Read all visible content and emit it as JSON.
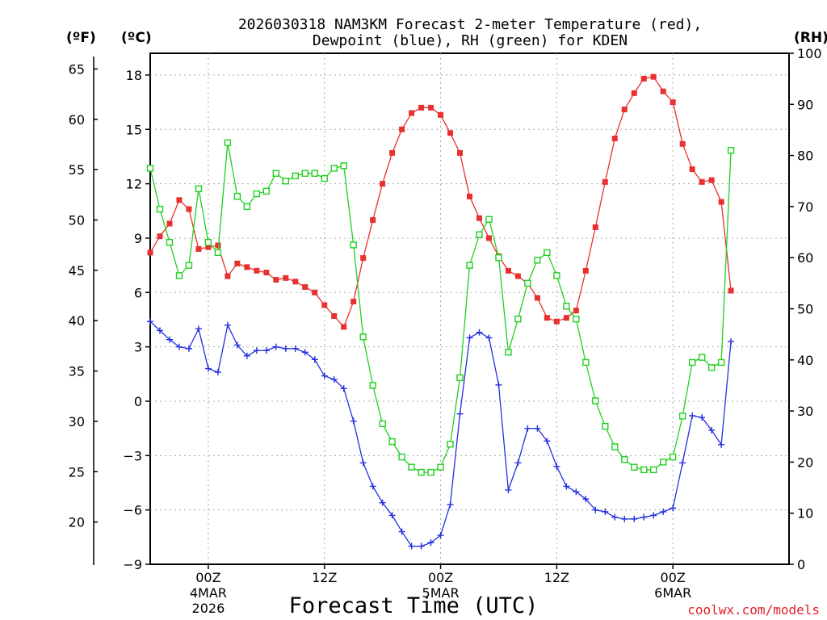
{
  "chart_data": {
    "type": "line",
    "title_line1": "2026030318 NAM3KM Forecast 2-meter Temperature (red),",
    "title_line2": "Dewpoint (blue), RH (green) for KDEN",
    "unit_f": "(ºF)",
    "unit_c": "(ºC)",
    "unit_rh": "(RH)",
    "xlabel": "Forecast Time (UTC)",
    "credit": "coolwx.com/models",
    "x_range_hours": [
      -6,
      60
    ],
    "ylim_c": [
      -9,
      19.2
    ],
    "ylim_rh": [
      0,
      100
    ],
    "left_c_ticks": [
      "18",
      "15",
      "12",
      "9",
      "6",
      "3",
      "0",
      "−3",
      "−6",
      "−9"
    ],
    "left_f_ticks": [
      "65",
      "60",
      "55",
      "50",
      "45",
      "40",
      "35",
      "30",
      "25",
      "20"
    ],
    "right_rh_ticks": [
      "100",
      "90",
      "80",
      "70",
      "60",
      "50",
      "40",
      "30",
      "20",
      "10",
      "0"
    ],
    "x_ticks": [
      {
        "hour": 0,
        "label": "00Z",
        "date": "4MAR",
        "year": "2026"
      },
      {
        "hour": 12,
        "label": "12Z",
        "date": "",
        "year": ""
      },
      {
        "hour": 24,
        "label": "00Z",
        "date": "5MAR",
        "year": ""
      },
      {
        "hour": 36,
        "label": "12Z",
        "date": "",
        "year": ""
      },
      {
        "hour": 48,
        "label": "00Z",
        "date": "6MAR",
        "year": ""
      }
    ],
    "series": [
      {
        "name": "Temperature",
        "unit": "C",
        "color": "#e8302f",
        "marker": "filled-square",
        "hours": [
          -6,
          -5,
          -4,
          -3,
          -2,
          -1,
          0,
          1,
          2,
          3,
          4,
          5,
          6,
          7,
          8,
          9,
          10,
          11,
          12,
          13,
          14,
          15,
          16,
          17,
          18,
          19,
          20,
          21,
          22,
          23,
          24,
          25,
          26,
          27,
          28,
          29,
          30,
          31,
          32,
          33,
          34,
          35,
          36,
          37,
          38,
          39,
          40,
          41,
          42,
          43,
          44,
          45,
          46,
          47,
          48,
          49,
          50,
          51,
          52,
          53,
          54
        ],
        "values": [
          8.2,
          9.1,
          9.8,
          11.1,
          10.6,
          8.4,
          8.5,
          8.6,
          6.9,
          7.6,
          7.4,
          7.2,
          7.1,
          6.7,
          6.8,
          6.6,
          6.3,
          6.0,
          5.3,
          4.7,
          4.1,
          5.5,
          7.9,
          10.0,
          12.0,
          13.7,
          15.0,
          15.9,
          16.2,
          16.2,
          15.8,
          14.8,
          13.7,
          11.3,
          10.1,
          9.0,
          8.0,
          7.2,
          6.9,
          6.5,
          5.7,
          4.6,
          4.4,
          4.6,
          5.0,
          7.2,
          9.6,
          12.1,
          14.5,
          16.1,
          17.0,
          17.8,
          17.9,
          17.1,
          16.5,
          14.2,
          12.8,
          12.1,
          12.2,
          11.0,
          6.1
        ]
      },
      {
        "name": "Dewpoint",
        "unit": "C",
        "color": "#2430e0",
        "marker": "plus",
        "hours": [
          -6,
          -5,
          -4,
          -3,
          -2,
          -1,
          0,
          1,
          2,
          3,
          4,
          5,
          6,
          7,
          8,
          9,
          10,
          11,
          12,
          13,
          14,
          15,
          16,
          17,
          18,
          19,
          20,
          21,
          22,
          23,
          24,
          25,
          26,
          27,
          28,
          29,
          30,
          31,
          32,
          33,
          34,
          35,
          36,
          37,
          38,
          39,
          40,
          41,
          42,
          43,
          44,
          45,
          46,
          47,
          48,
          49,
          50,
          51,
          52,
          53,
          54
        ],
        "values": [
          4.4,
          3.9,
          3.4,
          3.0,
          2.9,
          4.0,
          1.8,
          1.6,
          4.2,
          3.1,
          2.5,
          2.8,
          2.8,
          3.0,
          2.9,
          2.9,
          2.7,
          2.3,
          1.4,
          1.2,
          0.7,
          -1.1,
          -3.4,
          -4.7,
          -5.6,
          -6.3,
          -7.2,
          -8.0,
          -8.0,
          -7.8,
          -7.4,
          -5.7,
          -0.7,
          3.5,
          3.8,
          3.5,
          0.9,
          -4.9,
          -3.4,
          -1.5,
          -1.5,
          -2.2,
          -3.6,
          -4.7,
          -5.0,
          -5.4,
          -6.0,
          -6.1,
          -6.4,
          -6.5,
          -6.5,
          -6.4,
          -6.3,
          -6.1,
          -5.9,
          -3.4,
          -0.8,
          -0.9,
          -1.6,
          -2.4,
          3.3
        ]
      },
      {
        "name": "RH",
        "unit": "%",
        "color": "#20d020",
        "marker": "open-square",
        "hours": [
          -6,
          -5,
          -4,
          -3,
          -2,
          -1,
          0,
          1,
          2,
          3,
          4,
          5,
          6,
          7,
          8,
          9,
          10,
          11,
          12,
          13,
          14,
          15,
          16,
          17,
          18,
          19,
          20,
          21,
          22,
          23,
          24,
          25,
          26,
          27,
          28,
          29,
          30,
          31,
          32,
          33,
          34,
          35,
          36,
          37,
          38,
          39,
          40,
          41,
          42,
          43,
          44,
          45,
          46,
          47,
          48,
          49,
          50,
          51,
          52,
          53,
          54
        ],
        "values": [
          77.5,
          69.5,
          63,
          56.5,
          58.5,
          73.5,
          63,
          61,
          82.5,
          72,
          70,
          72.5,
          73,
          76.5,
          75,
          76,
          76.5,
          76.5,
          75.5,
          77.5,
          78,
          62.5,
          44.5,
          35,
          27.5,
          24,
          21,
          19,
          18,
          18,
          19,
          23.5,
          36.5,
          58.5,
          64.5,
          67.5,
          60,
          41.5,
          48,
          55,
          59.5,
          61,
          56.5,
          50.5,
          48,
          39.5,
          32,
          27,
          23,
          20.5,
          19,
          18.5,
          18.5,
          20,
          21,
          29,
          39.5,
          40.5,
          38.5,
          39.5,
          81
        ]
      }
    ]
  }
}
